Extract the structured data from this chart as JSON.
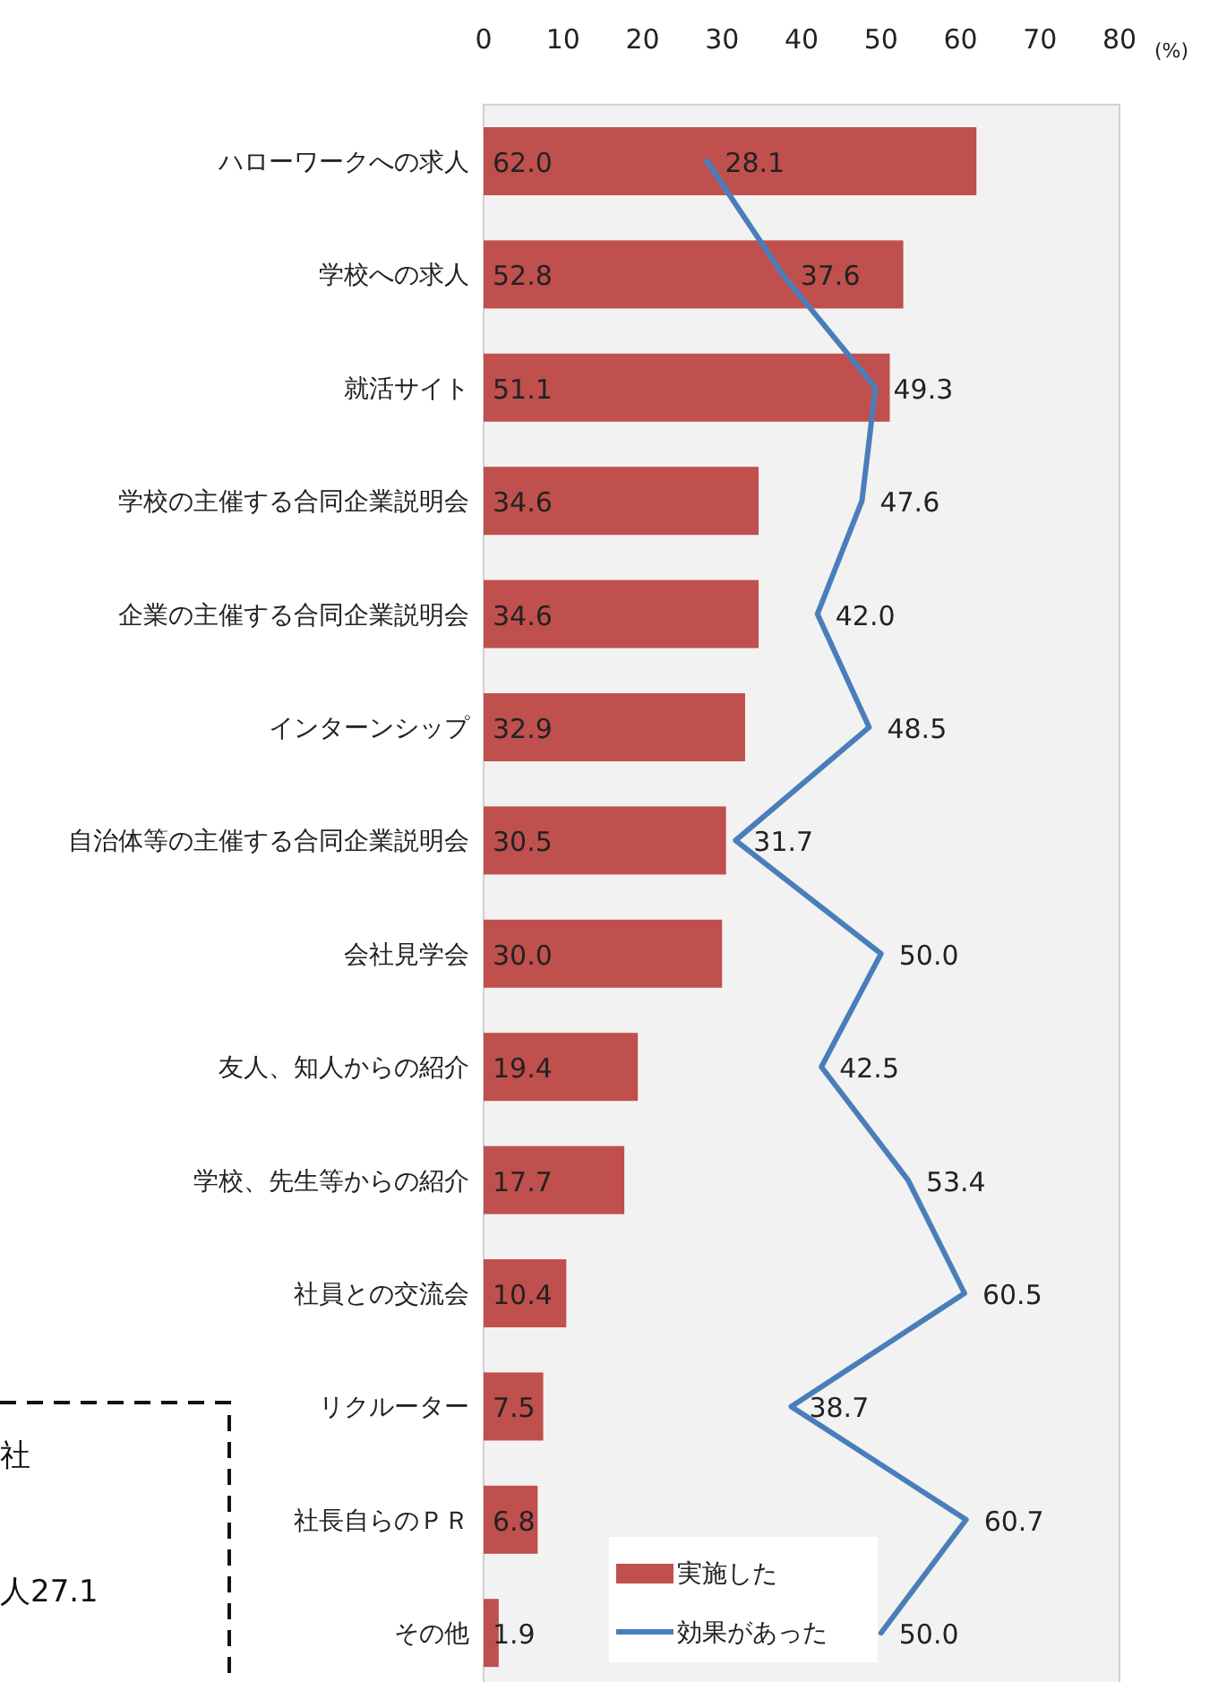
{
  "chart_data": {
    "type": "bar",
    "orientation": "horizontal",
    "xlabel": "(%)",
    "categories": [
      "ハローワークへの求人",
      "学校への求人",
      "就活サイト",
      "学校の主催する合同企業説明会",
      "企業の主催する合同企業説明会",
      "インターンシップ",
      "自治体等の主催する合同企業説明会",
      "会社見学会",
      "友人、知人からの紹介",
      "学校、先生等からの紹介",
      "社員との交流会",
      "リクルーター",
      "社長自らのＰＲ",
      "その他"
    ],
    "series": [
      {
        "name": "実施した",
        "color": "#c0504d",
        "values": [
          62.0,
          52.8,
          51.1,
          34.6,
          34.6,
          32.9,
          30.5,
          30.0,
          19.4,
          17.7,
          10.4,
          7.5,
          6.8,
          1.9
        ],
        "value_labels": [
          "62.0",
          "52.8",
          "51.1",
          "34.6",
          "34.6",
          "32.9",
          "30.5",
          "30.0",
          "19.4",
          "17.7",
          "10.4",
          "7.5",
          "6.8",
          "1.9"
        ]
      },
      {
        "name": "効果があった",
        "type": "line",
        "color": "#4a7ebb",
        "values": [
          28.1,
          37.6,
          49.3,
          47.6,
          42.0,
          48.5,
          31.7,
          50.0,
          42.5,
          53.4,
          60.5,
          38.7,
          60.7,
          50.0
        ],
        "value_labels": [
          "28.1",
          "37.6",
          "49.3",
          "47.6",
          "42.0",
          "48.5",
          "31.7",
          "50.0",
          "42.5",
          "53.4",
          "60.5",
          "38.7",
          "60.7",
          "50.0"
        ]
      }
    ],
    "xlim": [
      0,
      80
    ],
    "xticks": [
      0,
      10,
      20,
      30,
      40,
      50,
      60,
      70,
      80
    ],
    "legend": "bottom",
    "grid": false,
    "annotations": [
      "社",
      "人27.1"
    ]
  }
}
